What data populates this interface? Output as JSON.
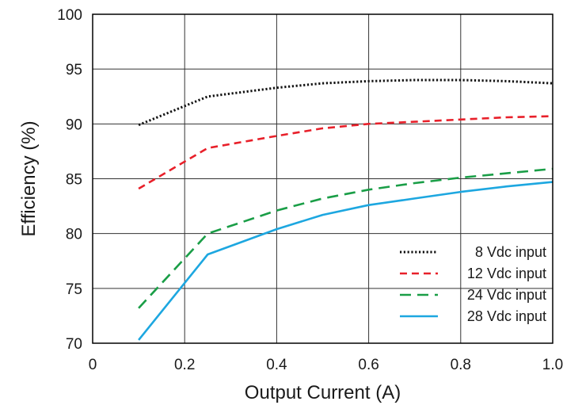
{
  "chart_data": {
    "type": "line",
    "title": "",
    "xlabel": "Output Current (A)",
    "ylabel": "Efficiency (%)",
    "xlim": [
      0,
      1.0
    ],
    "ylim": [
      70,
      100
    ],
    "xticks": [
      "0",
      "0.2",
      "0.4",
      "0.6",
      "0.8",
      "1.0"
    ],
    "xtick_values": [
      0,
      0.2,
      0.4,
      0.6,
      0.8,
      1.0
    ],
    "yticks": [
      "70",
      "75",
      "80",
      "85",
      "90",
      "95",
      "100"
    ],
    "ytick_values": [
      70,
      75,
      80,
      85,
      90,
      95,
      100
    ],
    "grid": true,
    "legend_position": "bottom-right",
    "series": [
      {
        "name": "8 Vdc input",
        "color": "#111111",
        "style": "dotted",
        "x": [
          0.1,
          0.25,
          0.4,
          0.5,
          0.6,
          0.7,
          0.8,
          0.9,
          1.0
        ],
        "y": [
          89.9,
          92.5,
          93.3,
          93.7,
          93.9,
          94.0,
          94.0,
          93.9,
          93.7
        ]
      },
      {
        "name": "12 Vdc input",
        "color": "#e8202a",
        "style": "dashed",
        "x": [
          0.1,
          0.25,
          0.4,
          0.5,
          0.6,
          0.7,
          0.8,
          0.9,
          1.0
        ],
        "y": [
          84.1,
          87.8,
          88.9,
          89.6,
          90.0,
          90.2,
          90.4,
          90.6,
          90.7
        ]
      },
      {
        "name": "24 Vdc input",
        "color": "#1a9e47",
        "style": "longdash",
        "x": [
          0.1,
          0.25,
          0.4,
          0.5,
          0.6,
          0.7,
          0.8,
          0.9,
          1.0
        ],
        "y": [
          73.2,
          80.0,
          82.1,
          83.2,
          84.0,
          84.6,
          85.1,
          85.5,
          85.9
        ]
      },
      {
        "name": "28 Vdc input",
        "color": "#1da7e0",
        "style": "solid",
        "x": [
          0.1,
          0.25,
          0.4,
          0.5,
          0.6,
          0.7,
          0.8,
          0.9,
          1.0
        ],
        "y": [
          70.3,
          78.1,
          80.4,
          81.7,
          82.6,
          83.2,
          83.8,
          84.3,
          84.7
        ]
      }
    ]
  }
}
